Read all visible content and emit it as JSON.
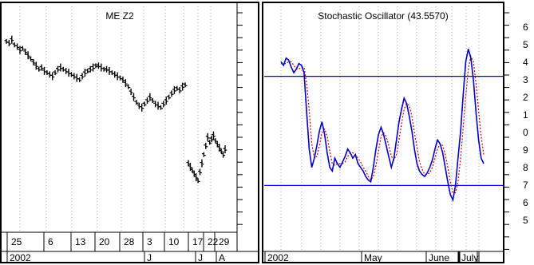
{
  "charts": {
    "left": {
      "title": "ME Z2",
      "date_ticks": [
        "25",
        "6",
        "13",
        "20",
        "28",
        "3",
        "10",
        "17",
        "22",
        "29"
      ],
      "period_labels": [
        "2002",
        "J",
        "J",
        "A"
      ]
    },
    "right": {
      "title": "Stochastic Oscillator (43.5570)",
      "period_labels": [
        "2002",
        "May",
        "June",
        "July"
      ],
      "far_right_ticks": [
        "6",
        "5",
        "4",
        "3",
        "2",
        "1",
        "0",
        "9",
        "8",
        "7",
        "6",
        "5"
      ]
    }
  },
  "colors": {
    "k_line": "#0000cc",
    "d_line": "#cc0000",
    "ref_lines": "#0000cc",
    "bars": "#000000"
  },
  "chart_data": [
    {
      "type": "ohlc",
      "title": "ME Z2",
      "series": [
        {
          "name": "",
          "values": [
            100,
            99,
            101,
            98,
            97,
            95,
            96,
            94,
            92,
            90,
            88,
            86,
            84,
            85,
            83,
            82,
            81,
            80,
            82,
            84,
            85,
            84,
            83,
            82,
            81,
            80,
            79,
            78,
            80,
            82,
            83,
            84,
            85,
            86,
            86,
            85,
            84,
            84,
            83,
            82,
            81,
            80,
            79,
            78,
            76,
            74,
            71,
            68,
            65,
            63,
            62,
            64,
            66,
            68,
            66,
            64,
            63,
            62,
            64,
            66,
            68,
            70,
            72,
            73,
            72,
            74,
            75,
            30,
            28,
            26,
            24,
            22,
            20,
            25,
            30,
            35,
            40,
            45,
            42,
            44,
            46,
            43,
            41,
            39,
            37,
            35,
            38
          ]
        }
      ]
    },
    {
      "type": "line",
      "title": "Stochastic Oscillator (43.5570)",
      "reference_lines": [
        80,
        20
      ],
      "series": [
        {
          "name": "",
          "values": [
            88,
            86,
            90,
            89,
            85,
            82,
            84,
            87,
            86,
            82,
            60,
            40,
            30,
            35,
            42,
            50,
            55,
            48,
            38,
            30,
            28,
            35,
            32,
            30,
            33,
            36,
            40,
            38,
            35,
            37,
            32,
            30,
            28,
            25,
            23,
            22,
            30,
            40,
            48,
            52,
            48,
            42,
            36,
            30,
            35,
            45,
            55,
            62,
            68,
            65,
            58,
            50,
            40,
            32,
            28,
            26,
            25,
            27,
            30,
            34,
            40,
            45,
            43,
            38,
            30,
            22,
            15,
            12,
            20,
            35,
            50,
            70,
            88,
            95,
            90,
            78,
            60,
            45,
            35,
            32
          ]
        },
        {
          "name": "",
          "values": [
            87,
            87,
            87,
            88,
            88,
            86,
            84,
            84,
            85,
            85,
            76,
            61,
            43,
            35,
            36,
            42,
            49,
            51,
            47,
            39,
            32,
            31,
            32,
            32,
            32,
            33,
            36,
            38,
            38,
            37,
            35,
            33,
            30,
            28,
            25,
            23,
            25,
            31,
            39,
            47,
            49,
            47,
            42,
            36,
            34,
            37,
            45,
            54,
            62,
            65,
            64,
            58,
            49,
            41,
            33,
            29,
            26,
            26,
            27,
            30,
            35,
            40,
            43,
            42,
            37,
            30,
            22,
            16,
            16,
            22,
            35,
            52,
            69,
            84,
            91,
            88,
            76,
            61,
            47,
            37
          ]
        }
      ]
    }
  ]
}
